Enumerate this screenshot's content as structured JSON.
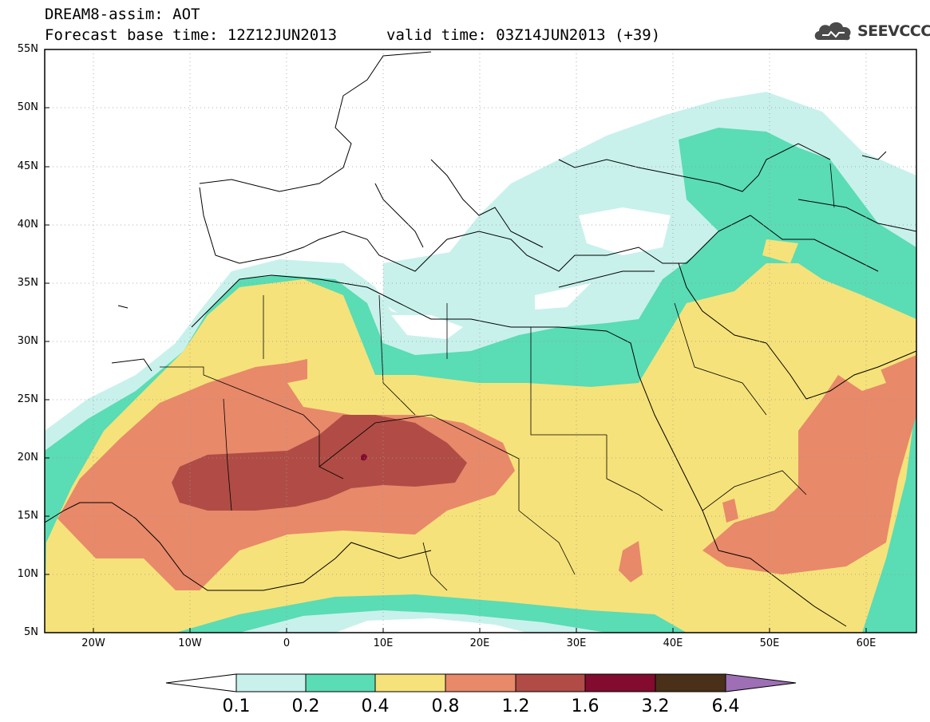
{
  "title": {
    "line1": "DREAM8-assim: AOT",
    "base_time": "Forecast base time: 12Z12JUN2013",
    "valid_time": "valid time: 03Z14JUN2013 (+39)"
  },
  "logo": {
    "text": "SEEVCCC",
    "icon": "cloud-icon"
  },
  "map": {
    "lat_labels": [
      "55N",
      "50N",
      "45N",
      "40N",
      "35N",
      "30N",
      "25N",
      "20N",
      "15N",
      "10N",
      "5N"
    ],
    "lon_labels": [
      "20W",
      "10W",
      "0",
      "10E",
      "20E",
      "30E",
      "40E",
      "50E",
      "60E"
    ],
    "region": "North Africa, Europe and Middle East",
    "field": "Aerosol optical thickness"
  },
  "colorbar": {
    "labels": [
      "0.1",
      "0.2",
      "0.4",
      "0.8",
      "1.2",
      "1.6",
      "3.2",
      "6.4"
    ],
    "colors": [
      "#c8f1ec",
      "#5adcb4",
      "#f6e27a",
      "#e8896a",
      "#b04c45",
      "#830b30",
      "#4a3018",
      "#9e6fb4"
    ]
  }
}
